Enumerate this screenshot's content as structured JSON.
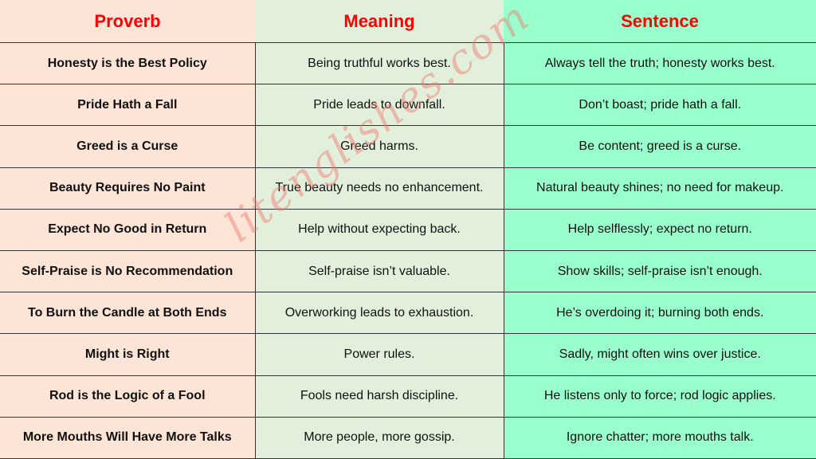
{
  "headers": {
    "proverb": "Proverb",
    "meaning": "Meaning",
    "sentence": "Sentence"
  },
  "rows": [
    {
      "proverb": "Honesty is the Best Policy",
      "meaning": "Being truthful works best.",
      "sentence": "Always tell the truth; honesty works best."
    },
    {
      "proverb": "Pride Hath a Fall",
      "meaning": "Pride leads to downfall.",
      "sentence": "Don’t boast; pride hath a fall."
    },
    {
      "proverb": "Greed is a Curse",
      "meaning": "Greed harms.",
      "sentence": "Be content; greed is a curse."
    },
    {
      "proverb": "Beauty Requires No Paint",
      "meaning": "True beauty needs no enhancement.",
      "sentence": "Natural beauty shines; no need for makeup."
    },
    {
      "proverb": "Expect No Good in Return",
      "meaning": "Help without expecting back.",
      "sentence": "Help selflessly; expect no return."
    },
    {
      "proverb": "Self-Praise is No Recommendation",
      "meaning": "Self-praise isn’t valuable.",
      "sentence": "Show skills; self-praise isn’t enough."
    },
    {
      "proverb": "To Burn the Candle at Both Ends",
      "meaning": "Overworking leads to exhaustion.",
      "sentence": "He’s overdoing it; burning both ends."
    },
    {
      "proverb": "Might is Right",
      "meaning": "Power rules.",
      "sentence": "Sadly, might often wins over justice."
    },
    {
      "proverb": "Rod is the Logic of a Fool",
      "meaning": "Fools need harsh discipline.",
      "sentence": "He listens only to force; rod logic applies."
    },
    {
      "proverb": "More Mouths Will Have More Talks",
      "meaning": "More people, more gossip.",
      "sentence": "Ignore chatter; more mouths talk."
    }
  ],
  "watermark": "litenglishes.com",
  "colors": {
    "header_text": "#ff0000",
    "proverb_bg": "#fce4d6",
    "meaning_bg": "#e2efda",
    "sentence_bg": "#99ffcc"
  }
}
